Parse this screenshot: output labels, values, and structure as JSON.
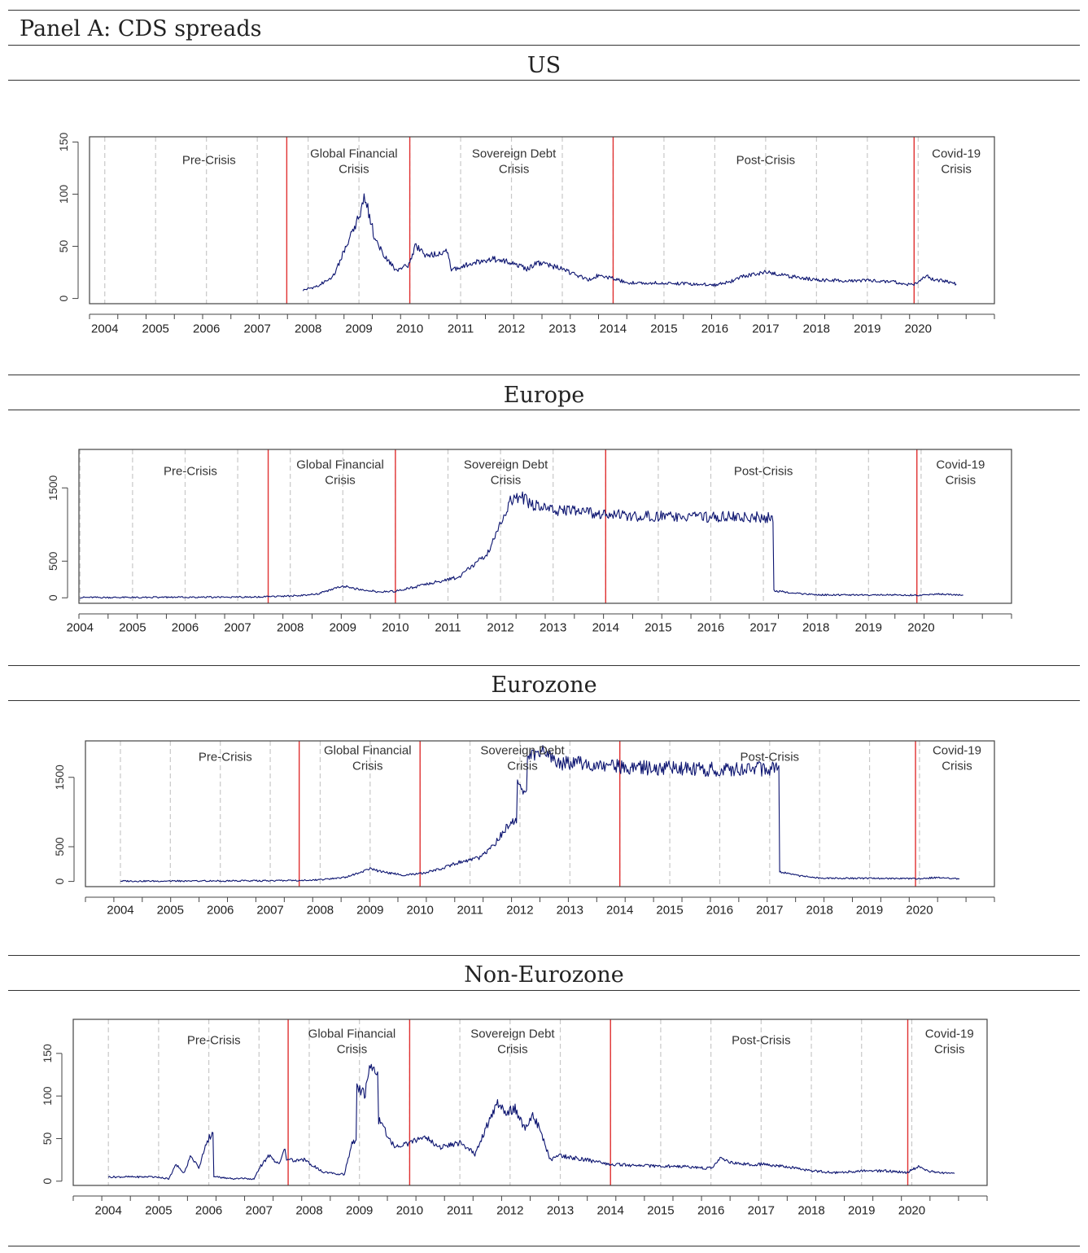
{
  "panel_title": "Panel A: CDS spreads",
  "colors": {
    "series": "#0c1470",
    "crisis_line": "#e03131",
    "grid": "#c8c8c8",
    "rule": "#333333"
  },
  "chart_data": [
    {
      "type": "line",
      "title": "US",
      "xlabel": "",
      "ylabel": "",
      "xlim": [
        2003.7,
        2021.5
      ],
      "ylim": [
        -5,
        155
      ],
      "yticks": [
        0,
        50,
        100,
        150
      ],
      "xticks": [
        "2004",
        "2005",
        "2006",
        "2007",
        "2008",
        "2009",
        "2010",
        "2011",
        "2012",
        "2013",
        "2014",
        "2015",
        "2016",
        "2017",
        "2018",
        "2019",
        "2020"
      ],
      "period_breaks": [
        2007.58,
        2010.0,
        2014.0,
        2019.92
      ],
      "periods": [
        {
          "lines": [
            "Pre-Crisis"
          ],
          "x": 2006.05
        },
        {
          "lines": [
            "Global Financial",
            "Crisis"
          ],
          "x": 2008.9
        },
        {
          "lines": [
            "Sovereign Debt",
            "Crisis"
          ],
          "x": 2012.05
        },
        {
          "lines": [
            "Post-Crisis"
          ],
          "x": 2017.0
        },
        {
          "lines": [
            "Covid-19",
            "Crisis"
          ],
          "x": 2020.75
        }
      ],
      "series": [
        {
          "name": "CDS spread",
          "x": [
            2007.9,
            2008.2,
            2008.5,
            2008.75,
            2008.95,
            2009.12,
            2009.3,
            2009.5,
            2009.75,
            2010.0,
            2010.12,
            2010.3,
            2010.6,
            2010.75,
            2010.8,
            2011.0,
            2011.3,
            2011.6,
            2011.9,
            2012.1,
            2012.3,
            2012.5,
            2012.7,
            2012.9,
            2013.2,
            2013.5,
            2013.75,
            2013.9,
            2014.0,
            2014.3,
            2014.7,
            2015.0,
            2015.5,
            2016.0,
            2016.3,
            2016.6,
            2017.0,
            2017.5,
            2018.0,
            2018.5,
            2019.0,
            2019.5,
            2019.9,
            2020.15,
            2020.3,
            2020.5,
            2020.75
          ],
          "y": [
            8,
            12,
            22,
            50,
            72,
            97,
            60,
            40,
            26,
            33,
            52,
            40,
            43,
            47,
            28,
            30,
            35,
            38,
            36,
            33,
            28,
            34,
            32,
            30,
            24,
            18,
            23,
            20,
            19,
            15,
            15,
            15,
            14,
            13,
            16,
            22,
            25,
            21,
            18,
            17,
            17,
            16,
            13,
            22,
            18,
            17,
            14
          ]
        }
      ]
    },
    {
      "type": "line",
      "title": "Europe",
      "xlabel": "",
      "ylabel": "",
      "xlim": [
        2003.98,
        2021.72
      ],
      "ylim": [
        -75,
        2025
      ],
      "yticks": [
        0,
        500,
        1500
      ],
      "xticks": [
        "2004",
        "2005",
        "2006",
        "2007",
        "2008",
        "2009",
        "2010",
        "2011",
        "2012",
        "2013",
        "2014",
        "2015",
        "2016",
        "2017",
        "2018",
        "2019",
        "2020"
      ],
      "period_breaks": [
        2007.58,
        2010.0,
        2014.0,
        2019.92
      ],
      "periods": [
        {
          "lines": [
            "Pre-Crisis"
          ],
          "x": 2006.1
        },
        {
          "lines": [
            "Global Financial",
            "Crisis"
          ],
          "x": 2008.95
        },
        {
          "lines": [
            "Sovereign Debt",
            "Crisis"
          ],
          "x": 2012.1
        },
        {
          "lines": [
            "Post-Crisis"
          ],
          "x": 2017.0
        },
        {
          "lines": [
            "Covid-19",
            "Crisis"
          ],
          "x": 2020.75
        }
      ],
      "series": [
        {
          "name": "CDS spread",
          "x": [
            2004.0,
            2005.0,
            2006.0,
            2007.0,
            2007.6,
            2008.0,
            2008.5,
            2009.0,
            2009.3,
            2009.7,
            2010.0,
            2010.4,
            2010.8,
            2011.2,
            2011.5,
            2011.8,
            2011.95,
            2012.1,
            2012.15,
            2012.4,
            2012.7,
            2013.0,
            2013.5,
            2014.0,
            2014.5,
            2015.0,
            2015.5,
            2016.0,
            2016.5,
            2017.0,
            2017.15,
            2017.2,
            2017.6,
            2018.0,
            2018.5,
            2019.0,
            2019.5,
            2020.0,
            2020.3,
            2020.8
          ],
          "y": [
            5,
            5,
            8,
            10,
            15,
            25,
            50,
            160,
            120,
            80,
            90,
            150,
            220,
            280,
            450,
            650,
            950,
            1100,
            1300,
            1370,
            1240,
            1200,
            1180,
            1150,
            1120,
            1110,
            1100,
            1100,
            1110,
            1100,
            1100,
            100,
            60,
            40,
            40,
            40,
            40,
            35,
            50,
            35
          ]
        }
      ]
    },
    {
      "type": "line",
      "title": "Eurozone",
      "xlabel": "",
      "ylabel": "",
      "xlim": [
        2003.3,
        2021.5
      ],
      "ylim": [
        -75,
        2025
      ],
      "yticks": [
        0,
        500,
        1500
      ],
      "xticks": [
        "2004",
        "2005",
        "2006",
        "2007",
        "2008",
        "2009",
        "2010",
        "2011",
        "2012",
        "2013",
        "2014",
        "2015",
        "2016",
        "2017",
        "2018",
        "2019",
        "2020"
      ],
      "period_breaks": [
        2007.58,
        2010.0,
        2014.0,
        2019.92
      ],
      "periods": [
        {
          "lines": [
            "Pre-Crisis"
          ],
          "x": 2006.1
        },
        {
          "lines": [
            "Global Financial",
            "Crisis"
          ],
          "x": 2008.95
        },
        {
          "lines": [
            "Sovereign Debt",
            "Crisis"
          ],
          "x": 2012.05
        },
        {
          "lines": [
            "Post-Crisis"
          ],
          "x": 2017.0
        },
        {
          "lines": [
            "Covid-19",
            "Crisis"
          ],
          "x": 2020.75
        }
      ],
      "series": [
        {
          "name": "CDS spread",
          "x": [
            2004.0,
            2005.0,
            2006.0,
            2007.0,
            2007.6,
            2008.0,
            2008.5,
            2009.0,
            2009.3,
            2009.7,
            2010.0,
            2010.4,
            2010.8,
            2011.2,
            2011.5,
            2011.8,
            2011.95,
            2012.1,
            2012.15,
            2012.4,
            2012.7,
            2013.0,
            2013.5,
            2014.0,
            2014.5,
            2015.0,
            2015.5,
            2016.0,
            2016.5,
            2017.0,
            2017.15,
            2017.2,
            2017.6,
            2018.0,
            2018.5,
            2019.0,
            2019.5,
            2020.0,
            2020.3,
            2020.8
          ],
          "y": [
            5,
            5,
            8,
            10,
            15,
            25,
            60,
            180,
            130,
            90,
            110,
            180,
            280,
            340,
            550,
            850,
            1400,
            1250,
            1800,
            1870,
            1730,
            1700,
            1680,
            1660,
            1640,
            1630,
            1620,
            1620,
            1630,
            1620,
            1620,
            140,
            80,
            50,
            45,
            45,
            40,
            40,
            55,
            40
          ]
        }
      ]
    },
    {
      "type": "line",
      "title": "Non-Eurozone",
      "xlabel": "",
      "ylabel": "",
      "xlim": [
        2003.3,
        2021.5
      ],
      "ylim": [
        -5,
        190
      ],
      "yticks": [
        0,
        50,
        100,
        150
      ],
      "xticks": [
        "2004",
        "2005",
        "2006",
        "2007",
        "2008",
        "2009",
        "2010",
        "2011",
        "2012",
        "2013",
        "2014",
        "2015",
        "2016",
        "2017",
        "2018",
        "2019",
        "2020"
      ],
      "period_breaks": [
        2007.58,
        2010.0,
        2014.0,
        2019.92
      ],
      "periods": [
        {
          "lines": [
            "Pre-Crisis"
          ],
          "x": 2006.1
        },
        {
          "lines": [
            "Global Financial",
            "Crisis"
          ],
          "x": 2008.85
        },
        {
          "lines": [
            "Sovereign Debt",
            "Crisis"
          ],
          "x": 2012.05
        },
        {
          "lines": [
            "Post-Crisis"
          ],
          "x": 2017.0
        },
        {
          "lines": [
            "Covid-19",
            "Crisis"
          ],
          "x": 2020.75
        }
      ],
      "series": [
        {
          "name": "CDS spread",
          "x": [
            2004.0,
            2004.8,
            2005.2,
            2005.35,
            2005.5,
            2005.65,
            2005.8,
            2005.95,
            2006.05,
            2006.1,
            2006.5,
            2006.9,
            2007.0,
            2007.2,
            2007.4,
            2007.5,
            2007.55,
            2007.9,
            2008.3,
            2008.7,
            2008.85,
            2008.95,
            2009.1,
            2009.2,
            2009.4,
            2009.7,
            2010.0,
            2010.3,
            2010.6,
            2011.0,
            2011.3,
            2011.5,
            2011.75,
            2011.9,
            2012.1,
            2012.3,
            2012.45,
            2012.6,
            2012.8,
            2013.0,
            2013.5,
            2014.0,
            2014.5,
            2015.0,
            2015.5,
            2016.0,
            2016.2,
            2016.4,
            2016.7,
            2017.0,
            2017.5,
            2018.0,
            2018.5,
            2019.0,
            2019.5,
            2019.9,
            2020.15,
            2020.25,
            2020.5,
            2020.85
          ],
          "y": [
            5,
            5,
            3,
            20,
            10,
            30,
            15,
            45,
            55,
            5,
            3,
            3,
            15,
            30,
            20,
            40,
            25,
            25,
            10,
            8,
            45,
            115,
            100,
            132,
            70,
            40,
            45,
            52,
            40,
            45,
            32,
            60,
            90,
            80,
            85,
            60,
            78,
            60,
            25,
            30,
            25,
            20,
            18,
            18,
            17,
            15,
            28,
            22,
            20,
            20,
            17,
            12,
            10,
            12,
            12,
            10,
            18,
            13,
            10,
            9
          ]
        }
      ]
    }
  ]
}
